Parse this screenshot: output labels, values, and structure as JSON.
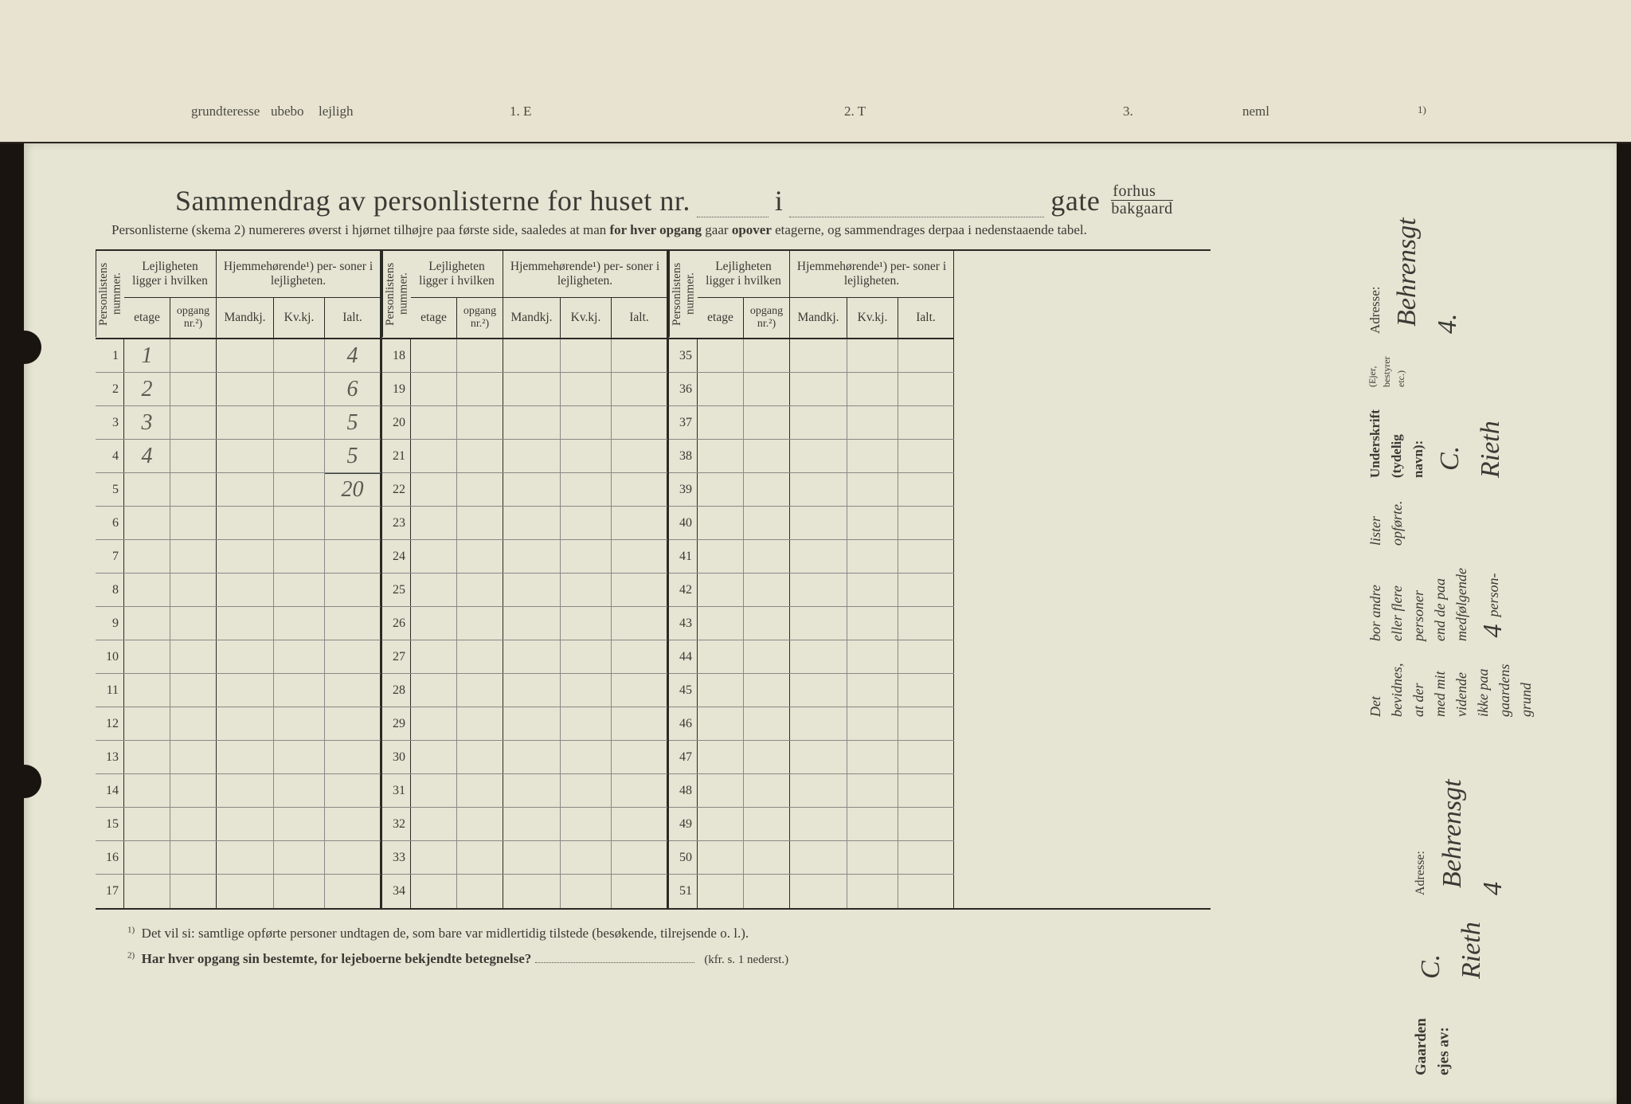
{
  "page_background": "#e6e4d2",
  "ink_color": "#3a3a35",
  "handwriting_color": "#5a5a52",
  "top_page_fragments": [
    "grund",
    "teresse",
    "ubebo",
    "lejligh",
    "1. E",
    "2. T",
    "3.",
    "neml",
    "1)"
  ],
  "title": {
    "main": "Sammendrag av personlisterne for huset nr.",
    "mid_i": "i",
    "gate": "gate",
    "forhus": "forhus",
    "bakgaard": "bakgaard"
  },
  "subtitle_parts": [
    "Personlisterne (skema 2) numereres øverst i hjørnet tilhøjre paa første side, saaledes at man ",
    "for hver opgang",
    " gaar ",
    "opover",
    " etagerne, og sammendrages derpaa i nedenstaaende tabel."
  ],
  "headers": {
    "personlistens_nummer": "Personlistens\nnummer.",
    "lejligheten": "Lejligheten\nligger i hvilken",
    "hjemme": "Hjemmehørende¹) per-\nsoner i lejligheten.",
    "etage": "etage",
    "opgang": "opgang\nnr.²)",
    "mandkj": "Mandkj.",
    "kvkj": "Kv.kj.",
    "ialt": "Ialt."
  },
  "row_numbers_block1": [
    "1",
    "2",
    "3",
    "4",
    "5",
    "6",
    "7",
    "8",
    "9",
    "10",
    "11",
    "12",
    "13",
    "14",
    "15",
    "16",
    "17"
  ],
  "row_numbers_block2": [
    "18",
    "19",
    "20",
    "21",
    "22",
    "23",
    "24",
    "25",
    "26",
    "27",
    "28",
    "29",
    "30",
    "31",
    "32",
    "33",
    "34"
  ],
  "row_numbers_block3": [
    "35",
    "36",
    "37",
    "38",
    "39",
    "40",
    "41",
    "42",
    "43",
    "44",
    "45",
    "46",
    "47",
    "48",
    "49",
    "50",
    "51"
  ],
  "handwritten": {
    "etage": [
      "1",
      "2",
      "3",
      "4",
      "",
      "",
      "",
      "",
      "",
      "",
      "",
      "",
      "",
      "",
      "",
      "",
      ""
    ],
    "ialt": [
      "4",
      "6",
      "5",
      "5",
      "20",
      "",
      "",
      "",
      "",
      "",
      "",
      "",
      "",
      "",
      "",
      "",
      ""
    ]
  },
  "footnote1_sup": "1)",
  "footnote1": "Det vil si: samtlige opførte personer undtagen de, som bare var midlertidig tilstede (besøkende, tilrejsende o. l.).",
  "footnote2_sup": "2)",
  "footnote2": "Har hver opgang sin bestemte, for lejeboerne bekjendte betegnelse?",
  "footnote2_ref": "(kfr. s. 1 nederst.)",
  "attestation": {
    "line1": "Det bevidnes, at der med mit vidende ikke paa gaardens grund",
    "line2": "bor andre eller flere personer end de paa medfølgende",
    "line3": "lister opførte.",
    "count_hand": "4",
    "person": "person-",
    "underskrift_label": "Underskrift (tydelig navn):",
    "ejer_note": "(Ejer, bestyrer etc.)",
    "signature": "C. Rieth",
    "adresse_label": "Adresse:",
    "adresse_value": "Behrensgt 4."
  },
  "owner": {
    "label": "Gaarden ejes av:",
    "name": "C. Rieth",
    "adresse_label": "Adresse:",
    "adresse_value": "Behrensgt 4"
  }
}
